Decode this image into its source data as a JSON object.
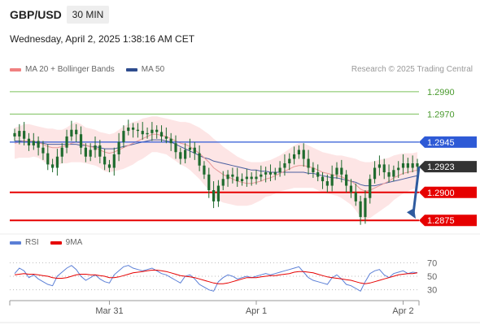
{
  "header": {
    "symbol": "GBP/USD",
    "timeframe": "30 MIN",
    "datetime": "Wednesday, April 2, 2025 1:38:16 AM CET"
  },
  "legend_main": [
    {
      "label": "MA 20 + Bollinger Bands",
      "color": "#f08080"
    },
    {
      "label": "MA 50",
      "color": "#2e4c8e"
    }
  ],
  "copyright": "Research © 2025 Trading Central",
  "legend_rsi": [
    {
      "label": "RSI",
      "color": "#5b7fd6"
    },
    {
      "label": "9MA",
      "color": "#e60000"
    }
  ],
  "colors": {
    "resistance_line": "#2e5ad6",
    "support_line": "#e60000",
    "target_line": "#7ac05a",
    "arrow": "#2e5a9e",
    "candle": "#1f6b2e",
    "bollinger_fill": "#fde0e0",
    "current_price_box": "#333333"
  },
  "chart_data": {
    "type": "candlestick",
    "y_range": [
      1.2865,
      1.3003
    ],
    "x_ticks": [
      {
        "label": "Mar 31",
        "index": 20
      },
      {
        "label": "Apr 1",
        "index": 51
      },
      {
        "label": "Apr 2",
        "index": 82
      }
    ],
    "levels": [
      {
        "label": "1.2990",
        "value": 1.299,
        "kind": "target"
      },
      {
        "label": "1.2970",
        "value": 1.297,
        "kind": "target"
      },
      {
        "label": "1.2945",
        "value": 1.2945,
        "kind": "resistance"
      },
      {
        "label": "1.2923",
        "value": 1.2923,
        "kind": "current"
      },
      {
        "label": "1.2900",
        "value": 1.29,
        "kind": "support"
      },
      {
        "label": "1.2875",
        "value": 1.2875,
        "kind": "support"
      }
    ],
    "close": [
      1.295,
      1.2955,
      1.2948,
      1.2942,
      1.2946,
      1.294,
      1.2935,
      1.2925,
      1.2922,
      1.2932,
      1.294,
      1.295,
      1.2956,
      1.2952,
      1.294,
      1.2932,
      1.2938,
      1.2942,
      1.2932,
      1.2925,
      1.2922,
      1.2934,
      1.2945,
      1.2955,
      1.2958,
      1.2956,
      1.2955,
      1.2952,
      1.2953,
      1.2956,
      1.2954,
      1.295,
      1.2948,
      1.2944,
      1.2936,
      1.293,
      1.2938,
      1.294,
      1.2935,
      1.2924,
      1.2916,
      1.2902,
      1.2892,
      1.2906,
      1.2912,
      1.2916,
      1.2914,
      1.291,
      1.2912,
      1.2914,
      1.2912,
      1.2914,
      1.2916,
      1.2918,
      1.2916,
      1.2918,
      1.2922,
      1.2926,
      1.293,
      1.2934,
      1.2938,
      1.293,
      1.2922,
      1.2918,
      1.2914,
      1.291,
      1.2906,
      1.2916,
      1.2922,
      1.2916,
      1.2906,
      1.29,
      1.2892,
      1.2878,
      1.2895,
      1.2912,
      1.2922,
      1.2925,
      1.2918,
      1.2914,
      1.292,
      1.2922,
      1.2926,
      1.2922,
      1.2926,
      1.2923
    ],
    "ma20": [
      1.2944,
      1.2945,
      1.2946,
      1.2946,
      1.2946,
      1.2945,
      1.2943,
      1.2941,
      1.294,
      1.294,
      1.2941,
      1.2942,
      1.2944,
      1.2945,
      1.2944,
      1.2942,
      1.2941,
      1.294,
      1.2938,
      1.2936,
      1.2935,
      1.2936,
      1.2938,
      1.294,
      1.2942,
      1.2944,
      1.2946,
      1.2948,
      1.295,
      1.2952,
      1.2952,
      1.2951,
      1.295,
      1.2948,
      1.2946,
      1.2944,
      1.2943,
      1.2941,
      1.2938,
      1.2935,
      1.2931,
      1.2927,
      1.2922,
      1.2919,
      1.2916,
      1.2914,
      1.2912,
      1.291,
      1.2909,
      1.2908,
      1.2908,
      1.2909,
      1.291,
      1.2912,
      1.2913,
      1.2915,
      1.2917,
      1.2919,
      1.2921,
      1.2923,
      1.2924,
      1.2924,
      1.2923,
      1.2922,
      1.292,
      1.2918,
      1.2917,
      1.2916,
      1.2915,
      1.2914,
      1.2912,
      1.291,
      1.2907,
      1.2903,
      1.2901,
      1.2902,
      1.2904,
      1.2906,
      1.2908,
      1.291,
      1.2913,
      1.2915,
      1.2917,
      1.2918,
      1.2919,
      1.292
    ],
    "ma50": [
      1.2946,
      1.2946,
      1.2946,
      1.2945,
      1.2945,
      1.2944,
      1.2944,
      1.2943,
      1.2943,
      1.2943,
      1.2943,
      1.2943,
      1.2943,
      1.2943,
      1.2942,
      1.2942,
      1.2941,
      1.2941,
      1.294,
      1.2939,
      1.2939,
      1.2939,
      1.294,
      1.2941,
      1.2942,
      1.2943,
      1.2944,
      1.2945,
      1.2946,
      1.2947,
      1.2947,
      1.2947,
      1.2946,
      1.2945,
      1.2943,
      1.2941,
      1.2939,
      1.2937,
      1.2935,
      1.2933,
      1.2931,
      1.293,
      1.2928,
      1.2927,
      1.2926,
      1.2925,
      1.2924,
      1.2923,
      1.2922,
      1.2921,
      1.292,
      1.292,
      1.2919,
      1.2919,
      1.2918,
      1.2918,
      1.2918,
      1.2918,
      1.2918,
      1.2918,
      1.2918,
      1.2918,
      1.2917,
      1.2917,
      1.2916,
      1.2915,
      1.2914,
      1.2913,
      1.2913,
      1.2912,
      1.2911,
      1.291,
      1.2909,
      1.2907,
      1.2906,
      1.2906,
      1.2906,
      1.2907,
      1.2908,
      1.2909,
      1.291,
      1.2911,
      1.2912,
      1.2913,
      1.2914,
      1.2915
    ],
    "bb_width": [
      0.0014,
      0.0014,
      0.0015,
      0.0015,
      0.0014,
      0.0014,
      0.0015,
      0.0016,
      0.0017,
      0.0016,
      0.0015,
      0.0016,
      0.0017,
      0.0018,
      0.0017,
      0.0016,
      0.0016,
      0.0016,
      0.0016,
      0.0017,
      0.0017,
      0.0017,
      0.0018,
      0.0019,
      0.0019,
      0.0019,
      0.0018,
      0.0018,
      0.0017,
      0.0016,
      0.0016,
      0.0016,
      0.0016,
      0.0017,
      0.0018,
      0.0019,
      0.002,
      0.0021,
      0.0022,
      0.0023,
      0.0024,
      0.0025,
      0.0026,
      0.0026,
      0.0025,
      0.0024,
      0.0023,
      0.0022,
      0.0021,
      0.002,
      0.0019,
      0.0018,
      0.0017,
      0.0016,
      0.0016,
      0.0016,
      0.0016,
      0.0017,
      0.0018,
      0.0019,
      0.002,
      0.002,
      0.0019,
      0.0018,
      0.0018,
      0.0018,
      0.0018,
      0.0018,
      0.0018,
      0.0019,
      0.002,
      0.0021,
      0.0023,
      0.0025,
      0.0026,
      0.0025,
      0.0024,
      0.0023,
      0.0022,
      0.0021,
      0.002,
      0.0019,
      0.0018,
      0.0017,
      0.0016,
      0.0016
    ],
    "rsi_panel": {
      "y_range": [
        20,
        80
      ],
      "ticks": [
        70,
        50,
        30
      ],
      "rsi": [
        54,
        62,
        58,
        48,
        52,
        46,
        42,
        38,
        36,
        50,
        56,
        62,
        66,
        60,
        50,
        44,
        48,
        52,
        46,
        42,
        40,
        52,
        58,
        64,
        66,
        62,
        60,
        58,
        60,
        62,
        58,
        54,
        52,
        48,
        44,
        40,
        50,
        52,
        46,
        38,
        34,
        30,
        28,
        42,
        48,
        52,
        50,
        46,
        48,
        50,
        48,
        50,
        52,
        54,
        52,
        54,
        56,
        58,
        60,
        62,
        64,
        56,
        48,
        44,
        42,
        40,
        38,
        48,
        52,
        46,
        38,
        36,
        32,
        28,
        42,
        54,
        58,
        60,
        52,
        48,
        54,
        56,
        58,
        54,
        56,
        55
      ],
      "ma9": [
        52,
        53,
        54,
        53,
        53,
        52,
        51,
        50,
        48,
        47,
        47,
        48,
        50,
        52,
        53,
        53,
        52,
        52,
        51,
        50,
        48,
        48,
        49,
        51,
        53,
        55,
        56,
        57,
        58,
        59,
        59,
        58,
        57,
        55,
        53,
        51,
        50,
        49,
        48,
        46,
        44,
        42,
        40,
        39,
        39,
        40,
        42,
        44,
        46,
        48,
        48,
        48,
        49,
        50,
        51,
        51,
        52,
        53,
        54,
        56,
        57,
        57,
        56,
        55,
        53,
        51,
        49,
        48,
        47,
        46,
        45,
        44,
        42,
        40,
        39,
        40,
        42,
        44,
        46,
        48,
        50,
        52,
        53,
        54,
        54,
        55
      ]
    }
  }
}
